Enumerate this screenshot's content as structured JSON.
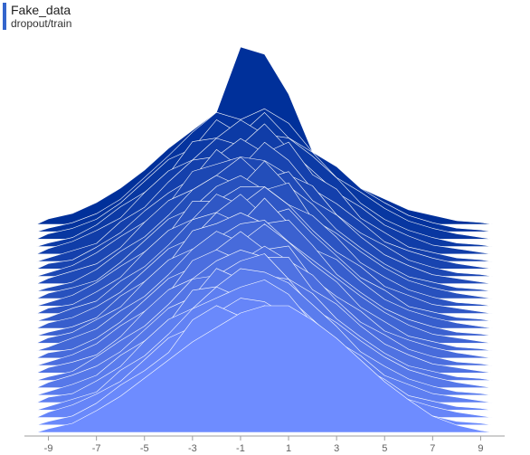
{
  "header": {
    "title": "Fake_data",
    "subtitle": "dropout/train"
  },
  "colors": {
    "accent": "#3465cc",
    "back_series": "#00309a",
    "front_series": "#6e8cff",
    "stroke": "#ffffff",
    "axis": "#9e9e9e"
  },
  "chart_data": {
    "type": "area",
    "subtype": "histogram-ridgeline",
    "title": "Fake_data",
    "subtitle": "dropout/train",
    "xlabel": "",
    "ylabel": "",
    "xlim": [
      -10,
      10
    ],
    "x_ticks": [
      -9,
      -7,
      -5,
      -3,
      -1,
      1,
      3,
      5,
      7,
      9
    ],
    "bin_centers": [
      -9,
      -8,
      -7,
      -6,
      -5,
      -4,
      -3,
      -2,
      -1,
      0,
      1,
      2,
      3,
      4,
      5,
      6,
      7,
      8,
      9
    ],
    "series": [
      {
        "values": [
          0.03,
          0.06,
          0.12,
          0.2,
          0.3,
          0.42,
          0.52,
          0.62,
          0.98,
          0.94,
          0.72,
          0.4,
          0.28,
          0.2,
          0.14,
          0.08,
          0.05,
          0.02,
          0.01
        ]
      },
      {
        "values": [
          0.02,
          0.05,
          0.1,
          0.18,
          0.3,
          0.42,
          0.55,
          0.66,
          0.62,
          0.68,
          0.6,
          0.44,
          0.36,
          0.24,
          0.16,
          0.09,
          0.05,
          0.02,
          0.01
        ]
      },
      {
        "values": [
          0.03,
          0.06,
          0.11,
          0.2,
          0.32,
          0.44,
          0.5,
          0.66,
          0.58,
          0.7,
          0.56,
          0.48,
          0.34,
          0.26,
          0.17,
          0.1,
          0.06,
          0.03,
          0.01
        ]
      },
      {
        "values": [
          0.02,
          0.05,
          0.12,
          0.22,
          0.3,
          0.4,
          0.58,
          0.6,
          0.7,
          0.62,
          0.6,
          0.5,
          0.38,
          0.24,
          0.15,
          0.09,
          0.05,
          0.02,
          0.01
        ]
      },
      {
        "values": [
          0.03,
          0.07,
          0.13,
          0.2,
          0.34,
          0.46,
          0.52,
          0.64,
          0.6,
          0.72,
          0.58,
          0.46,
          0.34,
          0.26,
          0.16,
          0.1,
          0.05,
          0.03,
          0.01
        ]
      },
      {
        "values": [
          0.02,
          0.06,
          0.1,
          0.22,
          0.3,
          0.44,
          0.56,
          0.58,
          0.68,
          0.6,
          0.66,
          0.48,
          0.4,
          0.24,
          0.16,
          0.08,
          0.05,
          0.02,
          0.01
        ]
      },
      {
        "values": [
          0.03,
          0.05,
          0.12,
          0.2,
          0.32,
          0.42,
          0.5,
          0.66,
          0.56,
          0.7,
          0.6,
          0.44,
          0.36,
          0.26,
          0.15,
          0.1,
          0.06,
          0.03,
          0.01
        ]
      },
      {
        "values": [
          0.02,
          0.06,
          0.13,
          0.22,
          0.3,
          0.4,
          0.58,
          0.62,
          0.66,
          0.64,
          0.56,
          0.5,
          0.34,
          0.24,
          0.17,
          0.09,
          0.05,
          0.02,
          0.01
        ]
      },
      {
        "values": [
          0.03,
          0.07,
          0.11,
          0.2,
          0.34,
          0.46,
          0.52,
          0.6,
          0.7,
          0.58,
          0.62,
          0.46,
          0.38,
          0.26,
          0.16,
          0.1,
          0.05,
          0.03,
          0.01
        ]
      },
      {
        "values": [
          0.02,
          0.05,
          0.12,
          0.22,
          0.3,
          0.42,
          0.56,
          0.64,
          0.58,
          0.72,
          0.58,
          0.48,
          0.34,
          0.24,
          0.15,
          0.08,
          0.05,
          0.02,
          0.01
        ]
      },
      {
        "values": [
          0.03,
          0.06,
          0.1,
          0.2,
          0.32,
          0.44,
          0.5,
          0.62,
          0.68,
          0.6,
          0.64,
          0.44,
          0.36,
          0.26,
          0.17,
          0.1,
          0.06,
          0.03,
          0.01
        ]
      },
      {
        "values": [
          0.02,
          0.06,
          0.13,
          0.22,
          0.3,
          0.4,
          0.58,
          0.58,
          0.66,
          0.66,
          0.56,
          0.5,
          0.38,
          0.24,
          0.16,
          0.09,
          0.05,
          0.02,
          0.01
        ]
      },
      {
        "values": [
          0.03,
          0.05,
          0.12,
          0.2,
          0.34,
          0.46,
          0.52,
          0.66,
          0.6,
          0.7,
          0.6,
          0.46,
          0.34,
          0.26,
          0.15,
          0.1,
          0.05,
          0.03,
          0.01
        ]
      },
      {
        "values": [
          0.02,
          0.07,
          0.11,
          0.22,
          0.3,
          0.42,
          0.56,
          0.6,
          0.7,
          0.58,
          0.62,
          0.48,
          0.36,
          0.24,
          0.17,
          0.08,
          0.05,
          0.02,
          0.01
        ]
      },
      {
        "values": [
          0.03,
          0.06,
          0.12,
          0.2,
          0.32,
          0.44,
          0.5,
          0.64,
          0.58,
          0.72,
          0.58,
          0.44,
          0.38,
          0.26,
          0.16,
          0.1,
          0.06,
          0.03,
          0.01
        ]
      },
      {
        "values": [
          0.02,
          0.05,
          0.1,
          0.22,
          0.3,
          0.4,
          0.58,
          0.62,
          0.68,
          0.62,
          0.64,
          0.5,
          0.34,
          0.24,
          0.15,
          0.09,
          0.05,
          0.02,
          0.01
        ]
      },
      {
        "values": [
          0.03,
          0.06,
          0.13,
          0.2,
          0.34,
          0.46,
          0.52,
          0.58,
          0.66,
          0.68,
          0.56,
          0.46,
          0.36,
          0.26,
          0.17,
          0.1,
          0.05,
          0.03,
          0.01
        ]
      },
      {
        "values": [
          0.02,
          0.07,
          0.12,
          0.22,
          0.3,
          0.42,
          0.56,
          0.66,
          0.6,
          0.7,
          0.6,
          0.48,
          0.38,
          0.24,
          0.16,
          0.08,
          0.05,
          0.02,
          0.01
        ]
      },
      {
        "values": [
          0.03,
          0.05,
          0.11,
          0.2,
          0.32,
          0.44,
          0.5,
          0.6,
          0.7,
          0.6,
          0.62,
          0.44,
          0.34,
          0.26,
          0.15,
          0.1,
          0.06,
          0.03,
          0.01
        ]
      },
      {
        "values": [
          0.02,
          0.06,
          0.12,
          0.22,
          0.3,
          0.4,
          0.58,
          0.64,
          0.58,
          0.66,
          0.58,
          0.5,
          0.36,
          0.24,
          0.17,
          0.09,
          0.05,
          0.02,
          0.01
        ]
      },
      {
        "values": [
          0.03,
          0.06,
          0.1,
          0.2,
          0.34,
          0.46,
          0.52,
          0.62,
          0.68,
          0.64,
          0.64,
          0.46,
          0.38,
          0.26,
          0.16,
          0.1,
          0.05,
          0.03,
          0.01
        ]
      },
      {
        "values": [
          0.02,
          0.05,
          0.13,
          0.22,
          0.3,
          0.42,
          0.56,
          0.58,
          0.66,
          0.7,
          0.56,
          0.48,
          0.34,
          0.24,
          0.15,
          0.08,
          0.05,
          0.02,
          0.01
        ]
      },
      {
        "values": [
          0.03,
          0.07,
          0.12,
          0.2,
          0.32,
          0.44,
          0.5,
          0.66,
          0.6,
          0.62,
          0.6,
          0.44,
          0.36,
          0.26,
          0.17,
          0.1,
          0.06,
          0.03,
          0.01
        ]
      },
      {
        "values": [
          0.02,
          0.06,
          0.11,
          0.22,
          0.3,
          0.4,
          0.58,
          0.6,
          0.7,
          0.68,
          0.62,
          0.5,
          0.38,
          0.24,
          0.16,
          0.09,
          0.05,
          0.02,
          0.01
        ]
      },
      {
        "values": [
          0.03,
          0.05,
          0.12,
          0.2,
          0.34,
          0.46,
          0.52,
          0.64,
          0.58,
          0.6,
          0.58,
          0.46,
          0.34,
          0.26,
          0.15,
          0.1,
          0.05,
          0.03,
          0.01
        ]
      },
      {
        "values": [
          0.02,
          0.06,
          0.1,
          0.22,
          0.3,
          0.42,
          0.56,
          0.62,
          0.68,
          0.72,
          0.64,
          0.48,
          0.36,
          0.24,
          0.17,
          0.08,
          0.05,
          0.02,
          0.01
        ]
      },
      {
        "values": [
          0.03,
          0.07,
          0.13,
          0.2,
          0.32,
          0.44,
          0.5,
          0.58,
          0.66,
          0.64,
          0.56,
          0.44,
          0.38,
          0.26,
          0.16,
          0.1,
          0.06,
          0.03,
          0.01
        ]
      },
      {
        "values": [
          0.02,
          0.05,
          0.12,
          0.22,
          0.3,
          0.4,
          0.58,
          0.66,
          0.6,
          0.66,
          0.6,
          0.5,
          0.34,
          0.24,
          0.15,
          0.09,
          0.05,
          0.02,
          0.01
        ]
      },
      {
        "values": [
          0.02,
          0.05,
          0.12,
          0.2,
          0.3,
          0.4,
          0.5,
          0.58,
          0.66,
          0.7,
          0.7,
          0.62,
          0.52,
          0.4,
          0.28,
          0.18,
          0.09,
          0.04,
          0.01
        ]
      }
    ]
  }
}
